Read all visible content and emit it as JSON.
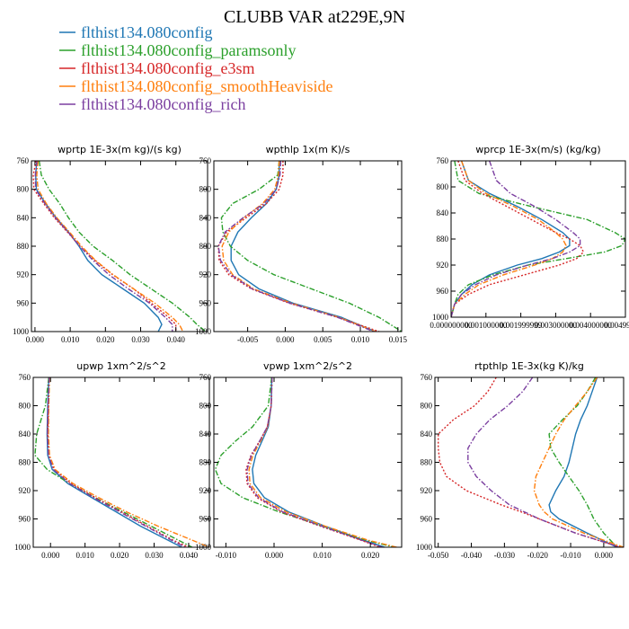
{
  "figure": {
    "title": "CLUBB VAR at229E,9N"
  },
  "legend": [
    {
      "name": "flthist134.080config",
      "color": "#1f77b4",
      "dash": "solid"
    },
    {
      "name": "flthist134.080config_paramsonly",
      "color": "#2ca02c",
      "dash": "dashdot"
    },
    {
      "name": "flthist134.080config_e3sm",
      "color": "#d62728",
      "dash": "dot"
    },
    {
      "name": "flthist134.080config_smoothHeaviside",
      "color": "#ff7f0e",
      "dash": "dashdot"
    },
    {
      "name": "flthist134.080config_rich",
      "color": "#7b3fa0",
      "dash": "dashdot"
    }
  ],
  "chart_data": [
    {
      "type": "line",
      "title": "wprtp  1E-3x(m kg)/(s kg)",
      "xlim": [
        -0.001,
        0.049
      ],
      "ylim": [
        760,
        1000
      ],
      "y_inverted": true,
      "xticks": [
        0.0,
        0.01,
        0.02,
        0.03,
        0.04
      ],
      "xtick_labels": [
        "0.000",
        "0.010",
        "0.020",
        "0.030",
        "0.040"
      ],
      "yticks": [
        760,
        800,
        840,
        880,
        920,
        960,
        1000
      ],
      "y": [
        760,
        780,
        800,
        820,
        840,
        860,
        880,
        900,
        920,
        940,
        960,
        980,
        990,
        1000
      ],
      "series": [
        {
          "values": [
            0.0005,
            0.0002,
            0.0004,
            0.003,
            0.006,
            0.0095,
            0.0125,
            0.015,
            0.019,
            0.025,
            0.031,
            0.035,
            0.036,
            0.035
          ]
        },
        {
          "values": [
            0.0012,
            0.0018,
            0.004,
            0.007,
            0.0095,
            0.0125,
            0.0165,
            0.022,
            0.027,
            0.033,
            0.039,
            0.044,
            0.046,
            0.0485
          ]
        },
        {
          "values": [
            0.0003,
            -0.0005,
            -0.0003,
            0.0025,
            0.0055,
            0.0092,
            0.0128,
            0.017,
            0.022,
            0.028,
            0.033,
            0.038,
            0.04,
            0.04
          ]
        },
        {
          "values": [
            0.0009,
            0.0005,
            0.0009,
            0.0032,
            0.0062,
            0.0098,
            0.0132,
            0.0172,
            0.0222,
            0.028,
            0.034,
            0.039,
            0.041,
            0.042
          ]
        },
        {
          "values": [
            0.0006,
            0.0001,
            0.0002,
            0.0028,
            0.0058,
            0.0094,
            0.0127,
            0.0165,
            0.021,
            0.0265,
            0.0325,
            0.037,
            0.039,
            0.039
          ]
        }
      ]
    },
    {
      "type": "line",
      "title": "wpthlp  1x(m K)/s",
      "xlim": [
        -0.0095,
        0.0155
      ],
      "ylim": [
        760,
        1000
      ],
      "y_inverted": true,
      "xticks": [
        -0.005,
        0.0,
        0.005,
        0.01,
        0.015
      ],
      "xtick_labels": [
        "-0.005",
        "0.000",
        "0.005",
        "0.010",
        "0.015"
      ],
      "yticks": [
        760,
        800,
        840,
        880,
        920,
        960,
        1000
      ],
      "y": [
        760,
        780,
        800,
        820,
        840,
        860,
        880,
        900,
        920,
        940,
        960,
        980,
        1000
      ],
      "series": [
        {
          "values": [
            -0.0008,
            -0.0008,
            -0.0012,
            -0.0025,
            -0.0045,
            -0.0063,
            -0.0072,
            -0.0072,
            -0.0062,
            -0.0035,
            0.001,
            0.0075,
            0.012
          ]
        },
        {
          "values": [
            -0.0008,
            -0.001,
            -0.0035,
            -0.007,
            -0.0085,
            -0.0083,
            -0.0073,
            -0.005,
            -0.0015,
            0.0035,
            0.0085,
            0.0125,
            0.0155
          ]
        },
        {
          "values": [
            -0.0003,
            -0.0003,
            -0.0008,
            -0.0025,
            -0.0052,
            -0.0078,
            -0.0089,
            -0.0088,
            -0.0075,
            -0.0045,
            0.0005,
            0.007,
            0.0125
          ]
        },
        {
          "values": [
            -0.0008,
            -0.0009,
            -0.0014,
            -0.003,
            -0.0055,
            -0.0075,
            -0.0084,
            -0.0082,
            -0.007,
            -0.0042,
            0.0008,
            0.0072,
            0.012
          ]
        },
        {
          "values": [
            -0.0006,
            -0.0007,
            -0.0012,
            -0.0028,
            -0.0056,
            -0.008,
            -0.0089,
            -0.0086,
            -0.0072,
            -0.0044,
            0.0006,
            0.007,
            0.0118
          ]
        }
      ]
    },
    {
      "type": "line",
      "title": "wprcp  1E-3x(m/s) (kg/kg)",
      "xlim": [
        0.0,
        0.0049999999
      ],
      "ylim": [
        760,
        1000
      ],
      "y_inverted": true,
      "xticks": [
        0.0,
        0.001,
        0.002,
        0.003,
        0.004,
        0.005
      ],
      "xtick_labels": [
        "0.000000000",
        "0.001000000",
        "0.001999999",
        "0.003000000",
        "0.004000000",
        "0.004999999"
      ],
      "yticks": [
        760,
        800,
        840,
        880,
        920,
        960,
        1000
      ],
      "y": [
        760,
        790,
        810,
        830,
        850,
        870,
        880,
        890,
        900,
        910,
        920,
        935,
        950,
        965,
        980,
        1000
      ],
      "series": [
        {
          "values": [
            0.0003,
            0.0005,
            0.0011,
            0.0019,
            0.0026,
            0.0032,
            0.0034,
            0.0034,
            0.0031,
            0.0026,
            0.0019,
            0.0011,
            0.0006,
            0.0003,
            0.0001,
            0.0
          ]
        },
        {
          "values": [
            0.0001,
            0.0002,
            0.0008,
            0.0023,
            0.0039,
            0.0047,
            0.005,
            0.0049,
            0.0044,
            0.0033,
            0.0022,
            0.0012,
            0.0005,
            0.0002,
            0.0001,
            0.0
          ]
        },
        {
          "values": [
            0.0002,
            0.0004,
            0.0009,
            0.0016,
            0.0023,
            0.003,
            0.0034,
            0.0037,
            0.0038,
            0.0036,
            0.0031,
            0.0021,
            0.0011,
            0.0005,
            0.0001,
            0.0
          ]
        },
        {
          "values": [
            0.0003,
            0.0005,
            0.001,
            0.0018,
            0.0025,
            0.003,
            0.0032,
            0.0033,
            0.0032,
            0.0029,
            0.0024,
            0.0015,
            0.0008,
            0.0004,
            0.0001,
            0.0
          ]
        },
        {
          "values": [
            0.0011,
            0.0013,
            0.0017,
            0.0024,
            0.003,
            0.0035,
            0.0037,
            0.0037,
            0.0034,
            0.0029,
            0.0022,
            0.0013,
            0.0007,
            0.0003,
            0.0001,
            0.0
          ]
        }
      ]
    },
    {
      "type": "line",
      "title": "upwp  1xm^2/s^2",
      "xlim": [
        -0.005,
        0.046
      ],
      "ylim": [
        760,
        1000
      ],
      "y_inverted": true,
      "xticks": [
        0.0,
        0.01,
        0.02,
        0.03,
        0.04
      ],
      "xtick_labels": [
        "0.000",
        "0.010",
        "0.020",
        "0.030",
        "0.040"
      ],
      "yticks": [
        760,
        800,
        840,
        880,
        920,
        960,
        1000
      ],
      "y": [
        760,
        800,
        840,
        870,
        890,
        910,
        930,
        950,
        970,
        990,
        1000
      ],
      "series": [
        {
          "values": [
            -0.0005,
            -0.0008,
            -0.001,
            -0.0008,
            0.0005,
            0.005,
            0.012,
            0.019,
            0.026,
            0.034,
            0.038
          ]
        },
        {
          "values": [
            -0.0005,
            -0.0015,
            -0.004,
            -0.0045,
            -0.001,
            0.0055,
            0.013,
            0.021,
            0.029,
            0.037,
            0.041
          ]
        },
        {
          "values": [
            -0.0004,
            -0.0006,
            -0.0008,
            -0.0005,
            0.001,
            0.006,
            0.013,
            0.0205,
            0.028,
            0.0355,
            0.04
          ]
        },
        {
          "values": [
            -0.0003,
            -0.0005,
            -0.0006,
            -0.0003,
            0.0013,
            0.0065,
            0.014,
            0.022,
            0.031,
            0.041,
            0.046
          ]
        },
        {
          "values": [
            -0.0004,
            -0.0007,
            -0.0009,
            -0.0006,
            0.0008,
            0.0055,
            0.0125,
            0.02,
            0.0275,
            0.035,
            0.039
          ]
        }
      ]
    },
    {
      "type": "line",
      "title": "vpwp  1xm^2/s^2",
      "xlim": [
        -0.0125,
        0.0265
      ],
      "ylim": [
        760,
        1000
      ],
      "y_inverted": true,
      "xticks": [
        -0.01,
        0.0,
        0.01,
        0.02
      ],
      "xtick_labels": [
        "-0.010",
        "0.000",
        "0.010",
        "0.020"
      ],
      "yticks": [
        760,
        800,
        840,
        880,
        920,
        960,
        1000
      ],
      "y": [
        760,
        800,
        830,
        850,
        870,
        890,
        910,
        930,
        950,
        970,
        990,
        1000
      ],
      "series": [
        {
          "values": [
            -0.0005,
            -0.0006,
            -0.0012,
            -0.0025,
            -0.0038,
            -0.0045,
            -0.0042,
            -0.002,
            0.003,
            0.0105,
            0.0185,
            0.023
          ]
        },
        {
          "values": [
            -0.0005,
            -0.0012,
            -0.0045,
            -0.008,
            -0.011,
            -0.0122,
            -0.011,
            -0.0065,
            0.001,
            0.01,
            0.019,
            0.025
          ]
        },
        {
          "values": [
            -0.0004,
            -0.0006,
            -0.0014,
            -0.003,
            -0.0048,
            -0.0058,
            -0.0056,
            -0.0035,
            0.0015,
            0.0095,
            0.018,
            0.022
          ]
        },
        {
          "values": [
            -0.0004,
            -0.0006,
            -0.0013,
            -0.0028,
            -0.0044,
            -0.0052,
            -0.005,
            -0.0028,
            0.0025,
            0.0105,
            0.0195,
            0.0255
          ]
        },
        {
          "values": [
            -0.0004,
            -0.0006,
            -0.0014,
            -0.003,
            -0.0047,
            -0.0056,
            -0.0054,
            -0.0032,
            0.0018,
            0.0098,
            0.0182,
            0.0225
          ]
        }
      ]
    },
    {
      "type": "line",
      "title": "rtpthlp  1E-3x(kg K)/kg",
      "xlim": [
        -0.051,
        0.006
      ],
      "ylim": [
        760,
        1000
      ],
      "y_inverted": true,
      "xticks": [
        -0.05,
        -0.04,
        -0.03,
        -0.02,
        -0.01,
        0.0
      ],
      "xtick_labels": [
        "-0.050",
        "-0.040",
        "-0.030",
        "-0.020",
        "-0.010",
        "0.000"
      ],
      "yticks": [
        760,
        800,
        840,
        880,
        920,
        960,
        1000
      ],
      "y": [
        760,
        780,
        800,
        820,
        840,
        860,
        880,
        900,
        920,
        940,
        950,
        960,
        980,
        1000
      ],
      "series": [
        {
          "values": [
            -0.002,
            -0.0035,
            -0.005,
            -0.007,
            -0.0085,
            -0.0095,
            -0.0105,
            -0.012,
            -0.0145,
            -0.0165,
            -0.016,
            -0.0135,
            -0.005,
            0.004
          ]
        },
        {
          "values": [
            -0.0025,
            -0.005,
            -0.008,
            -0.0125,
            -0.0165,
            -0.016,
            -0.0135,
            -0.0105,
            -0.0075,
            -0.005,
            -0.004,
            -0.003,
            0.0,
            0.004
          ]
        },
        {
          "values": [
            -0.0325,
            -0.035,
            -0.039,
            -0.0455,
            -0.05,
            -0.05,
            -0.0495,
            -0.0475,
            -0.0415,
            -0.031,
            -0.025,
            -0.0195,
            -0.0085,
            0.005
          ]
        },
        {
          "values": [
            -0.002,
            -0.005,
            -0.0085,
            -0.012,
            -0.0145,
            -0.0165,
            -0.0185,
            -0.0205,
            -0.021,
            -0.0195,
            -0.018,
            -0.0155,
            -0.006,
            0.006
          ]
        },
        {
          "values": [
            -0.0215,
            -0.0245,
            -0.029,
            -0.0345,
            -0.0385,
            -0.041,
            -0.041,
            -0.0385,
            -0.034,
            -0.0285,
            -0.024,
            -0.0195,
            -0.0085,
            0.005
          ]
        }
      ]
    }
  ]
}
